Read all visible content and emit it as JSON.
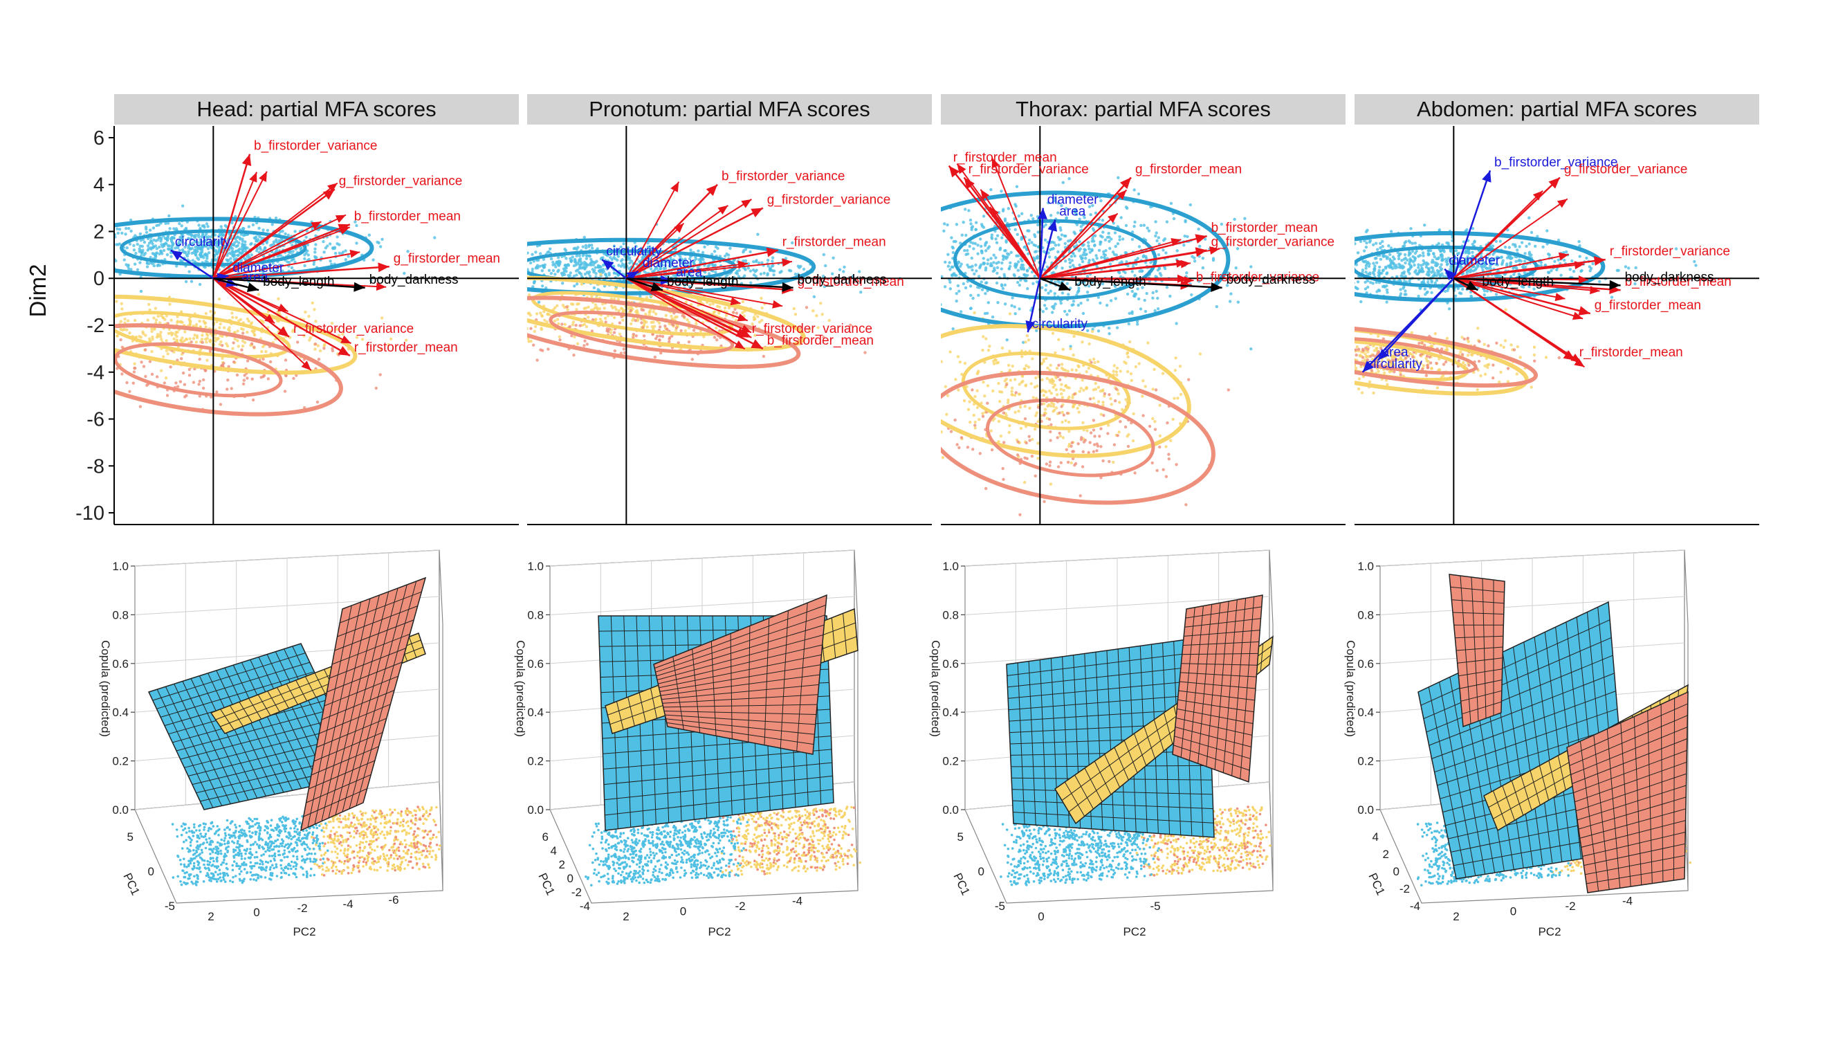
{
  "colors": {
    "strip_bg": "#d3d3d3",
    "cluster_blue": "#4fbfe3",
    "cluster_blue_dark": "#2a9fd0",
    "cluster_yellow": "#f7d46a",
    "cluster_salmon": "#ee8f7b",
    "arrow_red": "#e8141b",
    "arrow_blue": "#1a1adb",
    "arrow_black": "#000000"
  },
  "shared": {
    "ylabel": "Dim2",
    "yticks": [
      6,
      4,
      2,
      0,
      -2,
      -4,
      -6,
      -8,
      -10
    ],
    "ylim": [
      -10.5,
      6.5
    ],
    "z_axis_label": "Copula (predicted)",
    "z_ticks": [
      "0.0",
      "0.2",
      "0.4",
      "0.6",
      "0.8",
      "1.0"
    ],
    "pc1_label": "PC1",
    "pc2_label": "PC2"
  },
  "chart_data": [
    {
      "type": "scatter",
      "title": "Head: partial MFA scores",
      "ylabel": "Dim2",
      "ylim": [
        -10.5,
        6.5
      ],
      "clusters": [
        {
          "color": "cluster_blue",
          "center": [
            0.0,
            1.3
          ],
          "size": [
            5.5,
            1.3
          ]
        },
        {
          "color": "cluster_yellow",
          "center": [
            -0.5,
            -2.4
          ],
          "size": [
            5.5,
            1.4
          ]
        },
        {
          "color": "cluster_salmon",
          "center": [
            -0.5,
            -3.9
          ],
          "size": [
            5.0,
            1.8
          ]
        }
      ],
      "vectors": [
        {
          "label": "b_firstorder_variance",
          "color": "red",
          "x": 1.2,
          "y": 5.3,
          "labelled": true
        },
        {
          "label": "g_firstorder_variance",
          "color": "red",
          "x": 4.0,
          "y": 3.8,
          "labelled": true
        },
        {
          "label": "b_firstorder_mean",
          "color": "red",
          "x": 4.5,
          "y": 2.3,
          "labelled": true
        },
        {
          "label": "g_firstorder_mean",
          "color": "red",
          "x": 5.8,
          "y": 0.5,
          "labelled": true
        },
        {
          "label": "r_firstorder_variance",
          "color": "red",
          "x": 2.5,
          "y": -2.5,
          "labelled": true
        },
        {
          "label": "r_firstorder_mean",
          "color": "red",
          "x": 4.5,
          "y": -3.3,
          "labelled": true
        },
        {
          "label": "circularity",
          "color": "blue",
          "x": -1.4,
          "y": 1.2,
          "labelled": true
        },
        {
          "label": "diameter",
          "color": "blue",
          "x": 0.5,
          "y": 0.1,
          "labelled": true
        },
        {
          "label": "area",
          "color": "blue",
          "x": 0.8,
          "y": -0.3,
          "labelled": true
        },
        {
          "label": "body_length",
          "color": "black",
          "x": 1.5,
          "y": -0.5,
          "labelled": true
        },
        {
          "label": "body_darkness",
          "color": "black",
          "x": 5.0,
          "y": -0.4,
          "labelled": true
        }
      ]
    },
    {
      "type": "scatter",
      "title": "Pronotum: partial MFA scores",
      "ylabel": "Dim2",
      "ylim": [
        -10.5,
        6.5
      ],
      "clusters": [
        {
          "color": "cluster_blue",
          "center": [
            0.0,
            0.5
          ],
          "size": [
            6.5,
            1.2
          ]
        },
        {
          "color": "cluster_yellow",
          "center": [
            0.2,
            -1.5
          ],
          "size": [
            6.0,
            1.2
          ]
        },
        {
          "color": "cluster_salmon",
          "center": [
            0.5,
            -2.3
          ],
          "size": [
            5.5,
            1.2
          ]
        }
      ],
      "vectors": [
        {
          "label": "b_firstorder_variance",
          "color": "red",
          "x": 3.0,
          "y": 4.0,
          "labelled": true
        },
        {
          "label": "g_firstorder_variance",
          "color": "red",
          "x": 4.5,
          "y": 3.0,
          "labelled": true
        },
        {
          "label": "r_firstorder_mean",
          "color": "red",
          "x": 5.0,
          "y": 1.2,
          "labelled": true
        },
        {
          "label": "g_firstorder_mean",
          "color": "red",
          "x": 5.5,
          "y": -0.5,
          "labelled": true
        },
        {
          "label": "r_firstorder_variance",
          "color": "red",
          "x": 4.0,
          "y": -2.5,
          "labelled": true
        },
        {
          "label": "b_firstorder_mean",
          "color": "red",
          "x": 4.5,
          "y": -3.0,
          "labelled": true
        },
        {
          "label": "diameter",
          "color": "blue",
          "x": 0.4,
          "y": 0.3,
          "labelled": true
        },
        {
          "label": "circularity",
          "color": "blue",
          "x": -0.8,
          "y": 0.8,
          "labelled": true
        },
        {
          "label": "area",
          "color": "blue",
          "x": 1.5,
          "y": -0.1,
          "labelled": true
        },
        {
          "label": "body_length",
          "color": "black",
          "x": 1.2,
          "y": -0.5,
          "labelled": true
        },
        {
          "label": "body_darkness",
          "color": "black",
          "x": 5.5,
          "y": -0.4,
          "labelled": true
        }
      ]
    },
    {
      "type": "scatter",
      "title": "Thorax: partial MFA scores",
      "ylabel": "Dim2",
      "ylim": [
        -10.5,
        6.5
      ],
      "clusters": [
        {
          "color": "cluster_blue",
          "center": [
            0.5,
            0.8
          ],
          "size": [
            6.0,
            3.0
          ]
        },
        {
          "color": "cluster_yellow",
          "center": [
            0.2,
            -4.8
          ],
          "size": [
            5.0,
            2.8
          ]
        },
        {
          "color": "cluster_salmon",
          "center": [
            1.0,
            -6.8
          ],
          "size": [
            5.0,
            2.8
          ]
        }
      ],
      "vectors": [
        {
          "label": "r_firstorder_mean",
          "color": "red",
          "x": -3.0,
          "y": 4.8,
          "labelled": true
        },
        {
          "label": "r_firstorder_variance",
          "color": "red",
          "x": -2.5,
          "y": 4.3,
          "labelled": true
        },
        {
          "label": "g_firstorder_mean",
          "color": "red",
          "x": 3.0,
          "y": 4.3,
          "labelled": true
        },
        {
          "label": "b_firstorder_mean",
          "color": "red",
          "x": 5.5,
          "y": 1.8,
          "labelled": true
        },
        {
          "label": "g_firstorder_variance",
          "color": "red",
          "x": 5.5,
          "y": 1.2,
          "labelled": true
        },
        {
          "label": "b_firstorder_variance",
          "color": "red",
          "x": 5.0,
          "y": -0.3,
          "labelled": true
        },
        {
          "label": "diameter",
          "color": "blue",
          "x": 0.1,
          "y": 3.0,
          "labelled": true
        },
        {
          "label": "area",
          "color": "blue",
          "x": 0.5,
          "y": 2.5,
          "labelled": true
        },
        {
          "label": "circularity",
          "color": "blue",
          "x": -0.4,
          "y": -2.3,
          "labelled": true
        },
        {
          "label": "body_length",
          "color": "black",
          "x": 1.0,
          "y": -0.5,
          "labelled": true
        },
        {
          "label": "body_darkness",
          "color": "black",
          "x": 6.0,
          "y": -0.4,
          "labelled": true
        }
      ]
    },
    {
      "type": "scatter",
      "title": "Abdomen: partial MFA scores",
      "ylabel": "Dim2",
      "ylim": [
        -10.5,
        6.5
      ],
      "clusters": [
        {
          "color": "cluster_blue",
          "center": [
            -0.3,
            0.5
          ],
          "size": [
            5.5,
            1.5
          ]
        },
        {
          "color": "cluster_yellow",
          "center": [
            -2.3,
            -3.5
          ],
          "size": [
            5.0,
            1.2
          ]
        },
        {
          "color": "cluster_salmon",
          "center": [
            -2.0,
            -3.3
          ],
          "size": [
            5.0,
            1.0
          ]
        }
      ],
      "vectors": [
        {
          "label": "b_firstorder_variance",
          "color": "blue",
          "x": 1.2,
          "y": 4.6,
          "labelled": true
        },
        {
          "label": "g_firstorder_variance",
          "color": "red",
          "x": 3.5,
          "y": 4.3,
          "labelled": true
        },
        {
          "label": "r_firstorder_variance",
          "color": "red",
          "x": 5.0,
          "y": 0.8,
          "labelled": true
        },
        {
          "label": "b_firstorder_mean",
          "color": "red",
          "x": 5.5,
          "y": -0.5,
          "labelled": true
        },
        {
          "label": "g_firstorder_mean",
          "color": "red",
          "x": 4.5,
          "y": -1.5,
          "labelled": true
        },
        {
          "label": "r_firstorder_mean",
          "color": "red",
          "x": 4.0,
          "y": -3.5,
          "labelled": true
        },
        {
          "label": "area",
          "color": "blue",
          "x": -2.5,
          "y": -3.5,
          "labelled": true
        },
        {
          "label": "circularity",
          "color": "blue",
          "x": -3.0,
          "y": -4.0,
          "labelled": true
        },
        {
          "label": "diameter",
          "color": "blue",
          "x": -0.3,
          "y": 0.4,
          "labelled": true
        },
        {
          "label": "body_length",
          "color": "black",
          "x": 0.8,
          "y": -0.5,
          "labelled": true
        },
        {
          "label": "body_darkness",
          "color": "black",
          "x": 5.5,
          "y": -0.3,
          "labelled": true
        }
      ]
    },
    {
      "type": "surface3d",
      "panel": "Head",
      "z_label": "Copula (predicted)",
      "zlim": [
        0.0,
        1.0
      ],
      "pc1_ticks": [
        "5",
        "0",
        "-5"
      ],
      "pc2_ticks": [
        "2",
        "0",
        "-2",
        "-4",
        "-6"
      ]
    },
    {
      "type": "surface3d",
      "panel": "Pronotum",
      "z_label": "Copula (predicted)",
      "zlim": [
        0.0,
        1.0
      ],
      "pc1_ticks": [
        "6",
        "4",
        "2",
        "0",
        "-2",
        "-4"
      ],
      "pc2_ticks": [
        "2",
        "0",
        "-2",
        "-4"
      ]
    },
    {
      "type": "surface3d",
      "panel": "Thorax",
      "z_label": "Copula (predicted)",
      "zlim": [
        0.0,
        1.0
      ],
      "pc1_ticks": [
        "5",
        "0",
        "-5"
      ],
      "pc2_ticks": [
        "0",
        "-5"
      ]
    },
    {
      "type": "surface3d",
      "panel": "Abdomen",
      "z_label": "Copula (predicted)",
      "zlim": [
        0.0,
        1.0
      ],
      "pc1_ticks": [
        "4",
        "2",
        "0",
        "-2",
        "-4"
      ],
      "pc2_ticks": [
        "2",
        "0",
        "-2",
        "-4"
      ]
    }
  ]
}
